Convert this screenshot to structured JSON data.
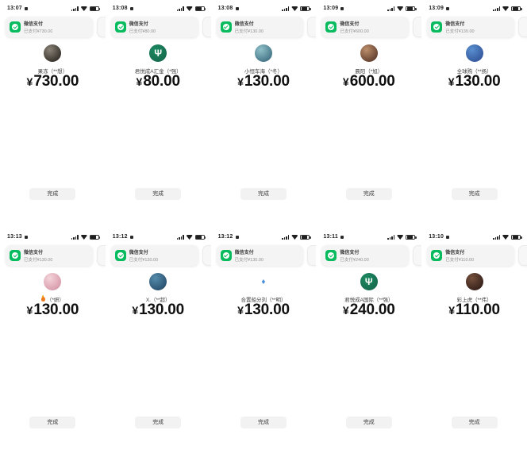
{
  "app": "wechat-pay-screenshot-collage",
  "colors": {
    "wechat_green": "#09bb5f",
    "banner_bg": "#f4f4f4",
    "button_bg": "#f2f2f2",
    "amount_text": "#101010",
    "page_bg": "#ffffff"
  },
  "shared": {
    "banner_title": "微信支付",
    "done_label": "完成",
    "currency": "¥",
    "status_icons": [
      "signal-bars",
      "wifi",
      "battery"
    ]
  },
  "cells": [
    {
      "time": "13:07",
      "banner_subtitle": "已支付¥730.00",
      "payee": "果冻（**想）",
      "amount": "730.00",
      "avatar": {
        "kind": "photo",
        "desc": "dark portrait photo",
        "bg_from": "#8a8378",
        "bg_to": "#1c1813",
        "glyph": ""
      }
    },
    {
      "time": "13:08",
      "banner_subtitle": "已支付¥80.00",
      "payee": "君悦成A汇金（*强）",
      "amount": "80.00",
      "avatar": {
        "kind": "logo",
        "desc": "green circle with white antler logo",
        "bg_from": "#1c8a60",
        "bg_to": "#14624a",
        "glyph": "Ψ",
        "glyph_color": "#ffffff"
      }
    },
    {
      "time": "13:08",
      "banner_subtitle": "已支付¥130.00",
      "payee": "小恒车海（*冬）",
      "amount": "130.00",
      "avatar": {
        "kind": "photo",
        "desc": "teal globe photo",
        "bg_from": "#8fc0c8",
        "bg_to": "#2e5e73",
        "glyph": ""
      }
    },
    {
      "time": "13:09",
      "banner_subtitle": "已支付¥600.00",
      "payee": "晨阳（*旭）",
      "amount": "600.00",
      "avatar": {
        "kind": "photo",
        "desc": "warm portrait photo",
        "bg_from": "#bd8f6c",
        "bg_to": "#47281c",
        "glyph": ""
      }
    },
    {
      "time": "13:09",
      "banner_subtitle": "已支付¥130.00",
      "payee": "全球购（**扬）",
      "amount": "130.00",
      "avatar": {
        "kind": "logo",
        "desc": "blue sphere logo",
        "bg_from": "#5a8fd0",
        "bg_to": "#27488c",
        "glyph": ""
      }
    },
    {
      "time": "13:13",
      "banner_subtitle": "已支付¥130.00",
      "payee": "（*妍）",
      "payee_icon": "flame",
      "amount": "130.00",
      "avatar": {
        "kind": "photo",
        "desc": "pink flower photo",
        "bg_from": "#f4d4da",
        "bg_to": "#cf8a9d",
        "glyph": ""
      }
    },
    {
      "time": "13:12",
      "banner_subtitle": "已支付¥130.00",
      "payee": "X.（**超）",
      "amount": "130.00",
      "avatar": {
        "kind": "photo",
        "desc": "earth globe photo",
        "bg_from": "#558cab",
        "bg_to": "#1d3f5e",
        "glyph": ""
      }
    },
    {
      "time": "13:12",
      "banner_subtitle": "已支付¥130.00",
      "payee": "合置船分刘（**明）",
      "amount": "130.00",
      "avatar": {
        "kind": "mini",
        "desc": "small blue diamond emoji avatar",
        "glyph": "♦",
        "glyph_color": "#4a90d9"
      }
    },
    {
      "time": "13:11",
      "banner_subtitle": "已支付¥240.00",
      "payee": "君悦成A国际（**强）",
      "amount": "240.00",
      "avatar": {
        "kind": "logo",
        "desc": "green circle with white antler logo",
        "bg_from": "#1c8a60",
        "bg_to": "#14624a",
        "glyph": "Ψ",
        "glyph_color": "#ffffff"
      }
    },
    {
      "time": "13:10",
      "banner_subtitle": "已支付¥110.00",
      "payee": "彩上虎（**伟）",
      "amount": "110.00",
      "avatar": {
        "kind": "photo",
        "desc": "dark brown portrait photo",
        "bg_from": "#75503d",
        "bg_to": "#241310",
        "glyph": ""
      }
    }
  ]
}
